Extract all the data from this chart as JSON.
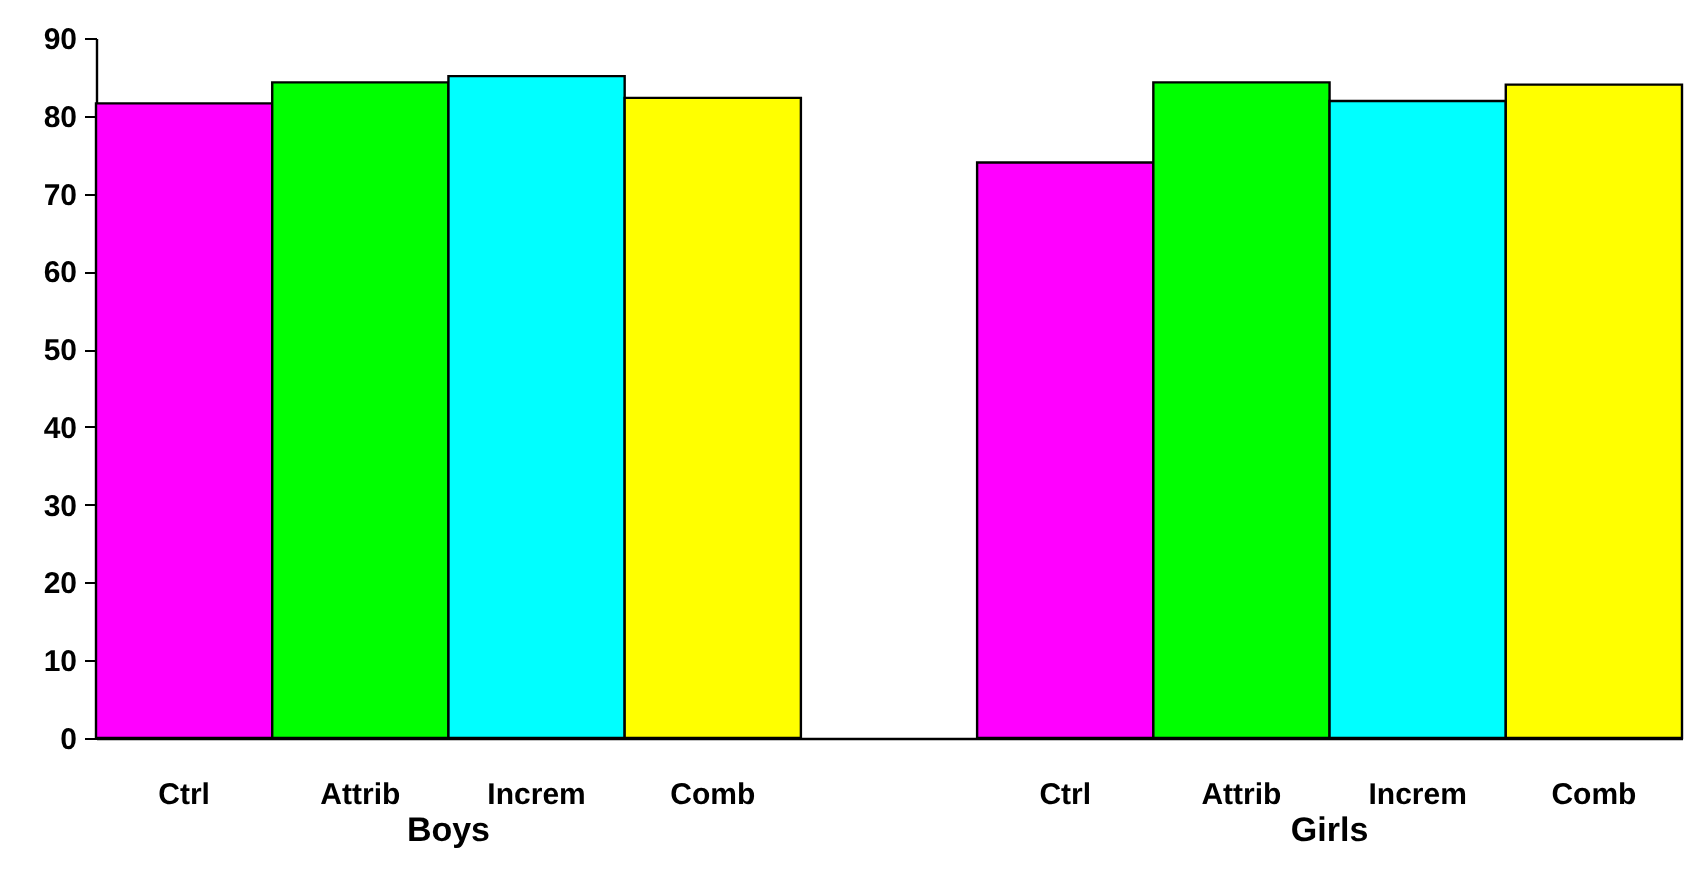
{
  "chart_data": {
    "type": "bar",
    "categories": [
      "Boys",
      "Girls"
    ],
    "series": [
      {
        "name": "Ctrl",
        "color": "#ff00ff",
        "values": [
          81.6,
          74.0
        ]
      },
      {
        "name": "Attrib",
        "color": "#00ff00",
        "values": [
          84.3,
          84.3
        ]
      },
      {
        "name": "Increm",
        "color": "#00ffff",
        "values": [
          85.1,
          81.9
        ]
      },
      {
        "name": "Comb",
        "color": "#ffff00",
        "values": [
          82.3,
          84.0
        ]
      }
    ],
    "ylim": [
      0,
      90
    ],
    "yticks": [
      0,
      10,
      20,
      30,
      40,
      50,
      60,
      70,
      80,
      90
    ],
    "grid": false
  }
}
